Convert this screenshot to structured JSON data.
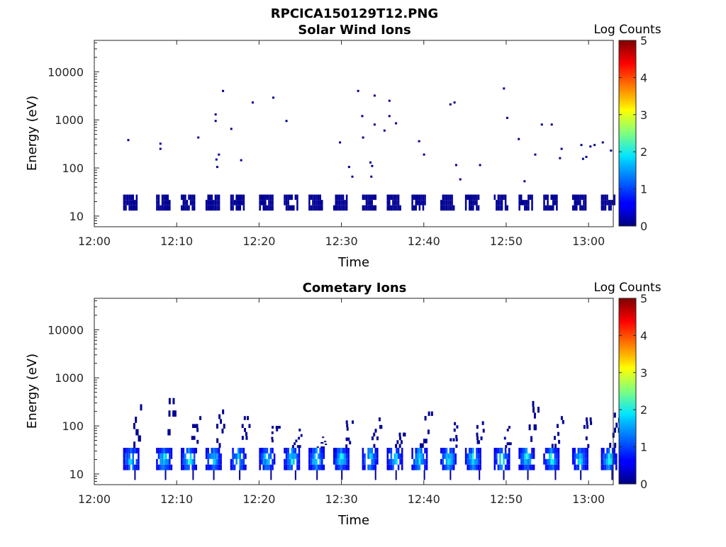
{
  "figure": {
    "title": "RPCICA150129T12.PNG"
  },
  "colorbar": {
    "label": "Log Counts",
    "min": 0,
    "max": 5,
    "ticks": [
      "0",
      "1",
      "2",
      "3",
      "4",
      "5"
    ],
    "colormap": "jet"
  },
  "chart_data": [
    {
      "type": "heatmap",
      "title": "Solar Wind Ions",
      "xlabel": "Time",
      "ylabel": "Energy (eV)",
      "y_scale": "log",
      "ylim": [
        6,
        45000
      ],
      "xlim": [
        "12:00",
        "13:03"
      ],
      "x_ticks": [
        "12:00",
        "12:10",
        "12:20",
        "12:30",
        "12:40",
        "12:50",
        "13:00"
      ],
      "y_ticks": [
        "10",
        "100",
        "1000",
        "10000"
      ],
      "band": {
        "energy_range": [
          13,
          28
        ],
        "log_counts": 0.1
      },
      "bursts": [
        "12:03.5",
        "12:07.5",
        "12:10.5",
        "12:13.5",
        "12:16.5",
        "12:20.0",
        "12:23.0",
        "12:26.0",
        "12:29.0",
        "12:32.5",
        "12:35.5",
        "12:38.5",
        "12:42.0",
        "12:45.0",
        "12:48.5",
        "12:51.5",
        "12:54.5",
        "12:58.0",
        "13:01.5"
      ],
      "scatter": [
        {
          "t": "12:04.0",
          "e": 380
        },
        {
          "t": "12:07.9",
          "e": 250
        },
        {
          "t": "12:07.9",
          "e": 320
        },
        {
          "t": "12:12.5",
          "e": 430
        },
        {
          "t": "12:14.6",
          "e": 1300
        },
        {
          "t": "12:14.6",
          "e": 950
        },
        {
          "t": "12:14.7",
          "e": 150
        },
        {
          "t": "12:14.8",
          "e": 105
        },
        {
          "t": "12:15.0",
          "e": 190
        },
        {
          "t": "12:15.5",
          "e": 4000
        },
        {
          "t": "12:16.5",
          "e": 650
        },
        {
          "t": "12:17.7",
          "e": 145
        },
        {
          "t": "12:19.1",
          "e": 2300
        },
        {
          "t": "12:21.6",
          "e": 2900
        },
        {
          "t": "12:23.2",
          "e": 950
        },
        {
          "t": "12:29.7",
          "e": 340
        },
        {
          "t": "12:30.8",
          "e": 105
        },
        {
          "t": "12:31.2",
          "e": 66
        },
        {
          "t": "12:31.9",
          "e": 4000
        },
        {
          "t": "12:32.4",
          "e": 1200
        },
        {
          "t": "12:32.5",
          "e": 430
        },
        {
          "t": "12:33.4",
          "e": 130
        },
        {
          "t": "12:33.6",
          "e": 110
        },
        {
          "t": "12:33.5",
          "e": 66
        },
        {
          "t": "12:33.9",
          "e": 3200
        },
        {
          "t": "12:33.9",
          "e": 800
        },
        {
          "t": "12:35.1",
          "e": 600
        },
        {
          "t": "12:35.7",
          "e": 2500
        },
        {
          "t": "12:35.7",
          "e": 1200
        },
        {
          "t": "12:36.5",
          "e": 850
        },
        {
          "t": "12:39.3",
          "e": 360
        },
        {
          "t": "12:39.9",
          "e": 190
        },
        {
          "t": "12:43.1",
          "e": 2100
        },
        {
          "t": "12:43.6",
          "e": 2300
        },
        {
          "t": "12:43.8",
          "e": 115
        },
        {
          "t": "12:44.3",
          "e": 58
        },
        {
          "t": "12:46.7",
          "e": 115
        },
        {
          "t": "12:49.6",
          "e": 4500
        },
        {
          "t": "12:50.0",
          "e": 1100
        },
        {
          "t": "12:51.4",
          "e": 400
        },
        {
          "t": "12:52.1",
          "e": 53
        },
        {
          "t": "12:53.4",
          "e": 190
        },
        {
          "t": "12:54.2",
          "e": 800
        },
        {
          "t": "12:55.4",
          "e": 800
        },
        {
          "t": "12:56.6",
          "e": 250
        },
        {
          "t": "12:56.4",
          "e": 160
        },
        {
          "t": "12:59.0",
          "e": 300
        },
        {
          "t": "12:59.2",
          "e": 155
        },
        {
          "t": "12:59.6",
          "e": 170
        },
        {
          "t": "13:00.1",
          "e": 280
        },
        {
          "t": "13:00.6",
          "e": 300
        },
        {
          "t": "13:01.6",
          "e": 340
        },
        {
          "t": "13:02.6",
          "e": 230
        }
      ]
    },
    {
      "type": "heatmap",
      "title": "Cometary Ions",
      "xlabel": "Time",
      "ylabel": "Energy (eV)",
      "y_scale": "log",
      "ylim": [
        6,
        45000
      ],
      "xlim": [
        "12:00",
        "13:03"
      ],
      "x_ticks": [
        "12:00",
        "12:10",
        "12:20",
        "12:30",
        "12:40",
        "12:50",
        "13:00"
      ],
      "y_ticks": [
        "10",
        "100",
        "1000",
        "10000"
      ],
      "bursts": [
        {
          "t": "12:03.5",
          "emax": 380
        },
        {
          "t": "12:07.5",
          "emax": 380
        },
        {
          "t": "12:10.5",
          "emax": 160
        },
        {
          "t": "12:13.5",
          "emax": 220
        },
        {
          "t": "12:16.5",
          "emax": 160
        },
        {
          "t": "12:20.0",
          "emax": 100
        },
        {
          "t": "12:23.0",
          "emax": 100
        },
        {
          "t": "12:26.0",
          "emax": 60
        },
        {
          "t": "12:29.0",
          "emax": 130
        },
        {
          "t": "12:32.5",
          "emax": 150
        },
        {
          "t": "12:35.5",
          "emax": 150
        },
        {
          "t": "12:38.5",
          "emax": 200
        },
        {
          "t": "12:42.0",
          "emax": 120
        },
        {
          "t": "12:45.0",
          "emax": 150
        },
        {
          "t": "12:48.5",
          "emax": 100
        },
        {
          "t": "12:51.5",
          "emax": 330
        },
        {
          "t": "12:54.5",
          "emax": 160
        },
        {
          "t": "12:58.0",
          "emax": 150
        },
        {
          "t": "13:01.5",
          "emax": 240
        }
      ],
      "core": {
        "energy_range": [
          12,
          35
        ],
        "log_counts_peak": 1.9
      },
      "tail": {
        "energy_range": [
          35,
          380
        ],
        "log_counts": 0.1
      }
    }
  ]
}
